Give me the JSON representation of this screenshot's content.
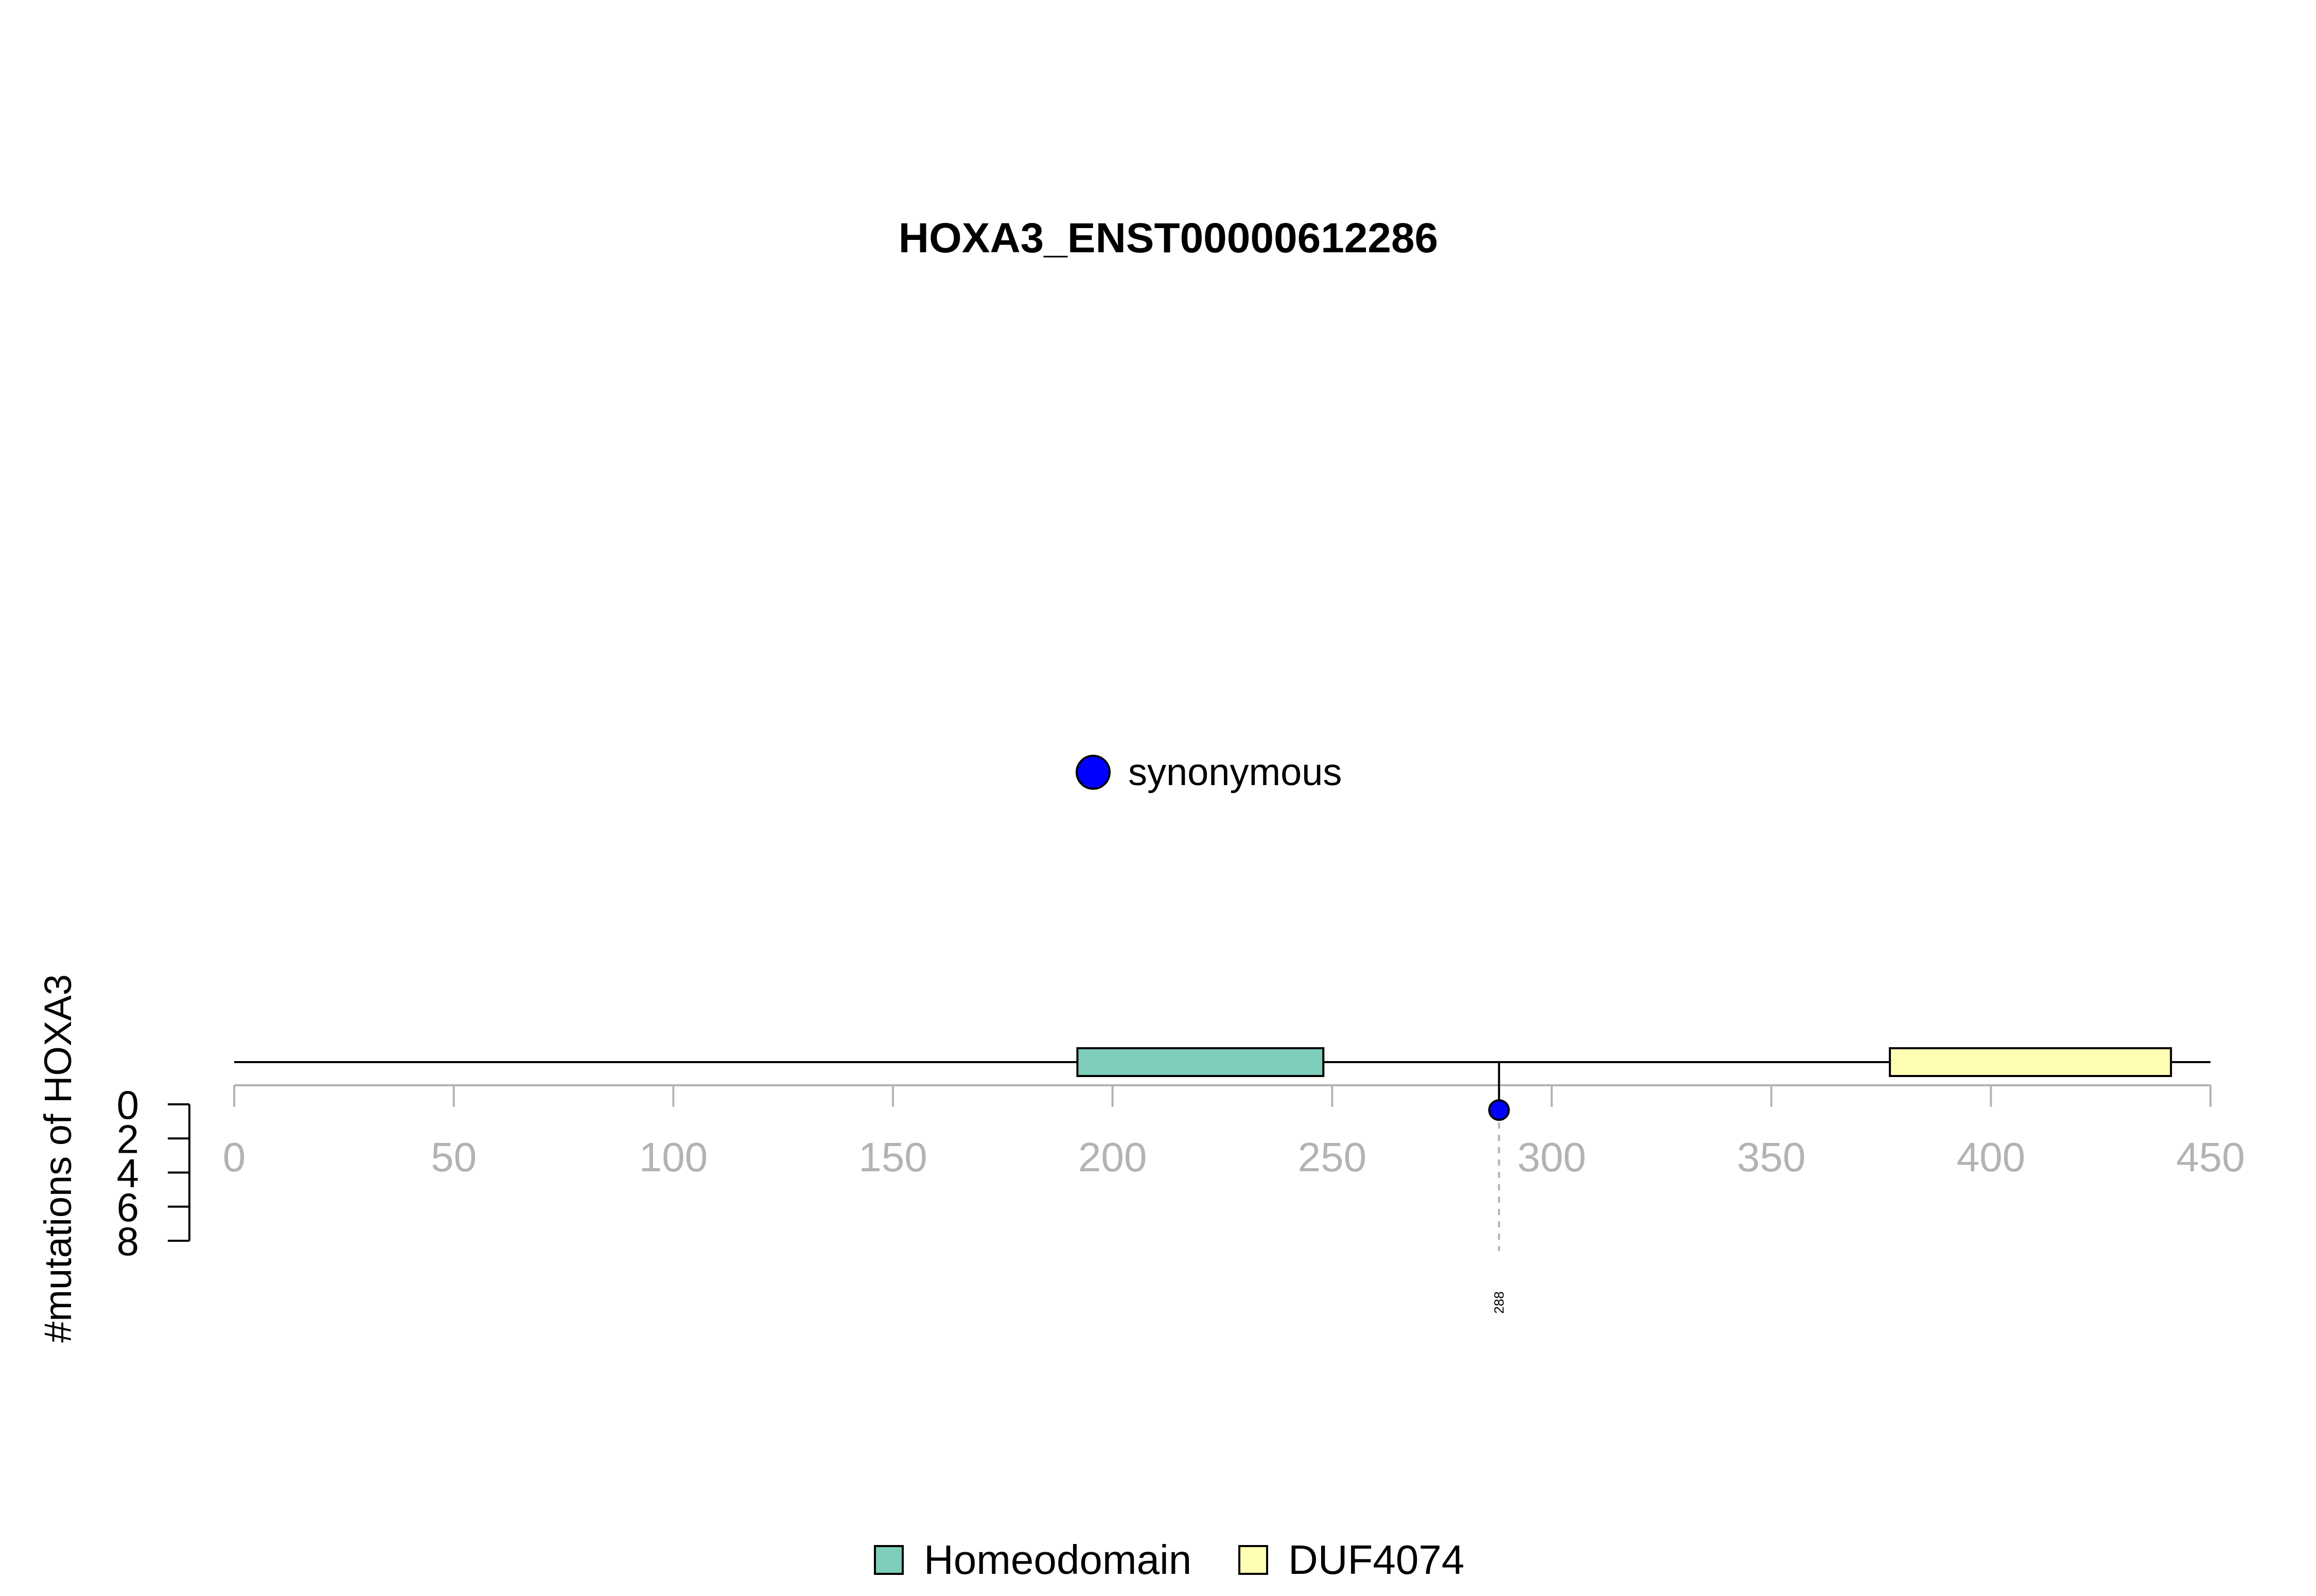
{
  "chart_data": {
    "type": "lollipop",
    "title": "HOXA3_ENST00000612286",
    "ylabel": "#mutations of HOXA3",
    "xlim": [
      0,
      450
    ],
    "x_ticks": [
      "0",
      "50",
      "100",
      "150",
      "200",
      "250",
      "300",
      "350",
      "400",
      "450"
    ],
    "y_ticks": [
      "0",
      "2",
      "4",
      "6",
      "8"
    ],
    "ylim": [
      0,
      8
    ],
    "domains": [
      {
        "name": "Homeodomain",
        "start": 192,
        "end": 248,
        "color": "#7fcdbb"
      },
      {
        "name": "DUF4074",
        "start": 377,
        "end": 441,
        "color": "#ffffb3"
      }
    ],
    "mutations": [
      {
        "position": 288,
        "count": 1,
        "type": "synonymous",
        "label": "288",
        "color": "#0000ff"
      }
    ],
    "mutation_legend": [
      {
        "label": "synonymous",
        "color": "#0000ff"
      }
    ],
    "domain_legend": [
      {
        "label": "Homeodomain",
        "color": "#7fcdbb"
      },
      {
        "label": "DUF4074",
        "color": "#ffffb3"
      }
    ]
  }
}
